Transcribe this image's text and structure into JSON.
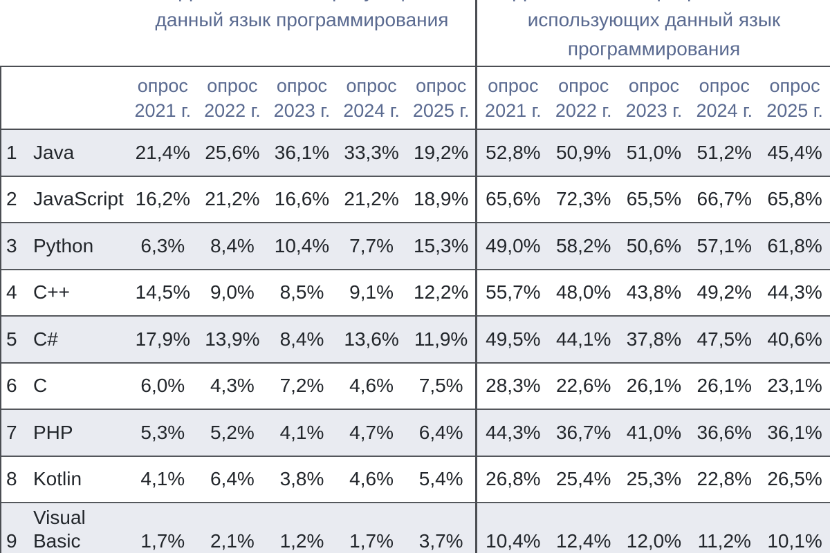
{
  "titles": {
    "left": {
      "line1_clipped": "Доля вакансий, требующих",
      "line2": "данный язык программирования"
    },
    "right": {
      "line1_clipped": "Доля компаний-разработчиков,",
      "line2": "использующих данный язык",
      "line3": "программирования"
    }
  },
  "subheader": {
    "label": "опрос",
    "years_left": [
      "2021 г.",
      "2022 г.",
      "2023 г.",
      "2024 г.",
      "2025 г."
    ],
    "years_right": [
      "2021 г.",
      "2022 г.",
      "2023 г.",
      "2024 г.",
      "2025 г."
    ]
  },
  "rows": [
    {
      "num": "1",
      "language": "Java",
      "vacancies": [
        "21,4%",
        "25,6%",
        "36,1%",
        "33,3%",
        "19,2%"
      ],
      "developers": [
        "52,8%",
        "50,9%",
        "51,0%",
        "51,2%",
        "45,4%"
      ]
    },
    {
      "num": "2",
      "language": "JavaScript",
      "vacancies": [
        "16,2%",
        "21,2%",
        "16,6%",
        "21,2%",
        "18,9%"
      ],
      "developers": [
        "65,6%",
        "72,3%",
        "65,5%",
        "66,7%",
        "65,8%"
      ]
    },
    {
      "num": "3",
      "language": "Python",
      "vacancies": [
        "6,3%",
        "8,4%",
        "10,4%",
        "7,7%",
        "15,3%"
      ],
      "developers": [
        "49,0%",
        "58,2%",
        "50,6%",
        "57,1%",
        "61,8%"
      ]
    },
    {
      "num": "4",
      "language": "C++",
      "vacancies": [
        "14,5%",
        "9,0%",
        "8,5%",
        "9,1%",
        "12,2%"
      ],
      "developers": [
        "55,7%",
        "48,0%",
        "43,8%",
        "49,2%",
        "44,3%"
      ]
    },
    {
      "num": "5",
      "language": "C#",
      "vacancies": [
        "17,9%",
        "13,9%",
        "8,4%",
        "13,6%",
        "11,9%"
      ],
      "developers": [
        "49,5%",
        "44,1%",
        "37,8%",
        "47,5%",
        "40,6%"
      ]
    },
    {
      "num": "6",
      "language": "C",
      "vacancies": [
        "6,0%",
        "4,3%",
        "7,2%",
        "4,6%",
        "7,5%"
      ],
      "developers": [
        "28,3%",
        "22,6%",
        "26,1%",
        "26,1%",
        "23,1%"
      ]
    },
    {
      "num": "7",
      "language": "PHP",
      "vacancies": [
        "5,3%",
        "5,2%",
        "4,1%",
        "4,7%",
        "6,4%"
      ],
      "developers": [
        "44,3%",
        "36,7%",
        "41,0%",
        "36,6%",
        "36,1%"
      ]
    },
    {
      "num": "8",
      "language": "Kotlin",
      "vacancies": [
        "4,1%",
        "6,4%",
        "3,8%",
        "4,6%",
        "5,4%"
      ],
      "developers": [
        "26,8%",
        "25,4%",
        "25,3%",
        "22,8%",
        "26,5%"
      ]
    },
    {
      "num": "9",
      "language": "Visual Basic .NET",
      "vacancies": [
        "1,7%",
        "2,1%",
        "1,2%",
        "1,7%",
        "3,7%"
      ],
      "developers": [
        "10,4%",
        "12,4%",
        "12,0%",
        "11,2%",
        "10,1%"
      ]
    }
  ],
  "colors": {
    "header_text": "#5a6a90",
    "body_text": "#22262b",
    "stripe": "#e9ebf1",
    "line": "#4b4e53"
  }
}
